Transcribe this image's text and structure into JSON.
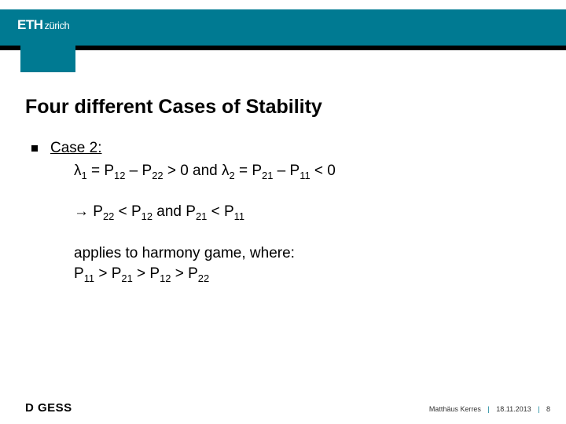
{
  "colors": {
    "teal": "#007a92",
    "black": "#000000",
    "white": "#ffffff"
  },
  "header": {
    "logo_main": "ETH",
    "logo_sub": "zürich"
  },
  "title": "Four different Cases of Stability",
  "content": {
    "case_label": "Case 2:",
    "line1_pre": "λ",
    "line1_sub1": "1",
    "line1_mid1": " = P",
    "line1_sub2": "12",
    "line1_mid2": " – P",
    "line1_sub3": "22",
    "line1_mid3": " > 0 and λ",
    "line1_sub4": "2",
    "line1_mid4": " = P",
    "line1_sub5": "21",
    "line1_mid5": " – P",
    "line1_sub6": "11",
    "line1_end": " < 0",
    "line2_arrow": "→ P",
    "line2_sub1": "22",
    "line2_mid1": " < P",
    "line2_sub2": "12",
    "line2_mid2": " and P",
    "line2_sub3": "21",
    "line2_mid3": " < P",
    "line2_sub4": "11",
    "line3": "applies to harmony game, where:",
    "line4_pre": "P",
    "line4_s1": "11",
    "line4_m1": " > P",
    "line4_s2": "21",
    "line4_m2": " > P",
    "line4_s3": "12",
    "line4_m3": " > P",
    "line4_s4": "22"
  },
  "footer": {
    "dept": "D GESS",
    "author": "Matthäus Kerres",
    "date": "18.11.2013",
    "page": "8"
  }
}
